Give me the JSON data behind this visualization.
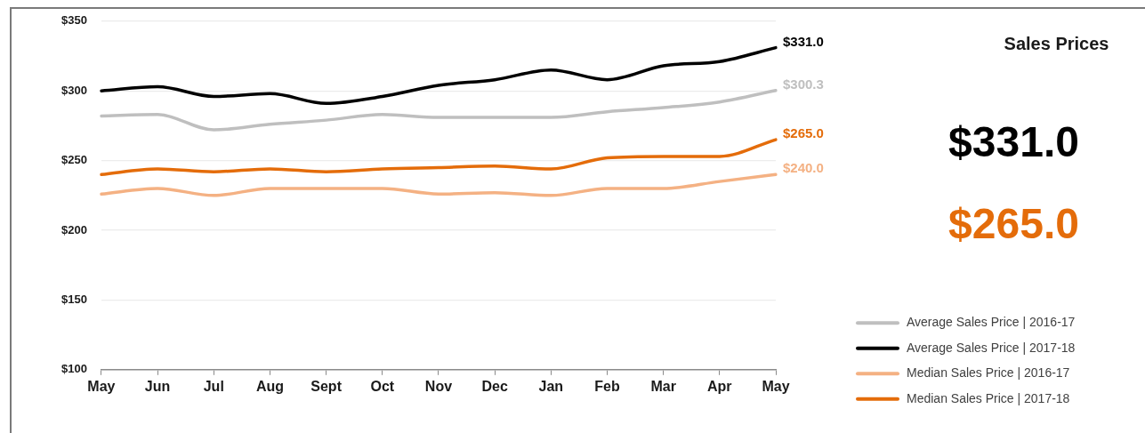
{
  "chart_data": {
    "type": "line",
    "title": "Sales Prices",
    "categories": [
      "May",
      "Jun",
      "Jul",
      "Aug",
      "Sept",
      "Oct",
      "Nov",
      "Dec",
      "Jan",
      "Feb",
      "Mar",
      "Apr",
      "May"
    ],
    "series": [
      {
        "name": "Average Sales Price | 2016-17",
        "color": "#bfbfbf",
        "values": [
          282,
          283,
          272,
          276,
          279,
          283,
          281,
          281,
          281,
          285,
          288,
          292,
          300.3
        ],
        "value_labels": [
          null,
          null,
          null,
          null,
          null,
          null,
          null,
          null,
          null,
          null,
          null,
          null,
          "$300.3"
        ]
      },
      {
        "name": "Average Sales Price | 2017-18",
        "color": "#000000",
        "values": [
          300,
          303,
          296,
          298,
          291,
          296,
          304,
          308,
          315,
          308,
          318,
          321,
          331
        ],
        "value_labels": [
          null,
          null,
          null,
          null,
          null,
          null,
          null,
          null,
          null,
          null,
          null,
          null,
          "$331.0"
        ]
      },
      {
        "name": "Median Sales Price | 2016-17",
        "color": "#f4b183",
        "values": [
          226,
          230,
          225,
          230,
          230,
          230,
          226,
          227,
          225,
          230,
          230,
          235,
          240
        ],
        "value_labels": [
          null,
          null,
          null,
          null,
          null,
          null,
          null,
          null,
          null,
          null,
          null,
          null,
          "$240.0"
        ]
      },
      {
        "name": "Median Sales Price | 2017-18",
        "color": "#e46c0a",
        "values": [
          240,
          244,
          242,
          244,
          242,
          244,
          245,
          246,
          244,
          252,
          253,
          253,
          265
        ],
        "value_labels": [
          null,
          null,
          null,
          null,
          null,
          null,
          null,
          null,
          null,
          null,
          null,
          null,
          "$265.0"
        ]
      }
    ],
    "ylim": [
      100,
      350
    ],
    "yticks": [
      {
        "value": 100,
        "label": "$100"
      },
      {
        "value": 150,
        "label": "$150"
      },
      {
        "value": 200,
        "label": "$200"
      },
      {
        "value": 250,
        "label": "$250"
      },
      {
        "value": 300,
        "label": "$300"
      },
      {
        "value": 350,
        "label": "$350"
      }
    ],
    "grid": "y",
    "legend": "bottom right",
    "annotations": [
      "$331.0",
      "$265.0"
    ]
  }
}
